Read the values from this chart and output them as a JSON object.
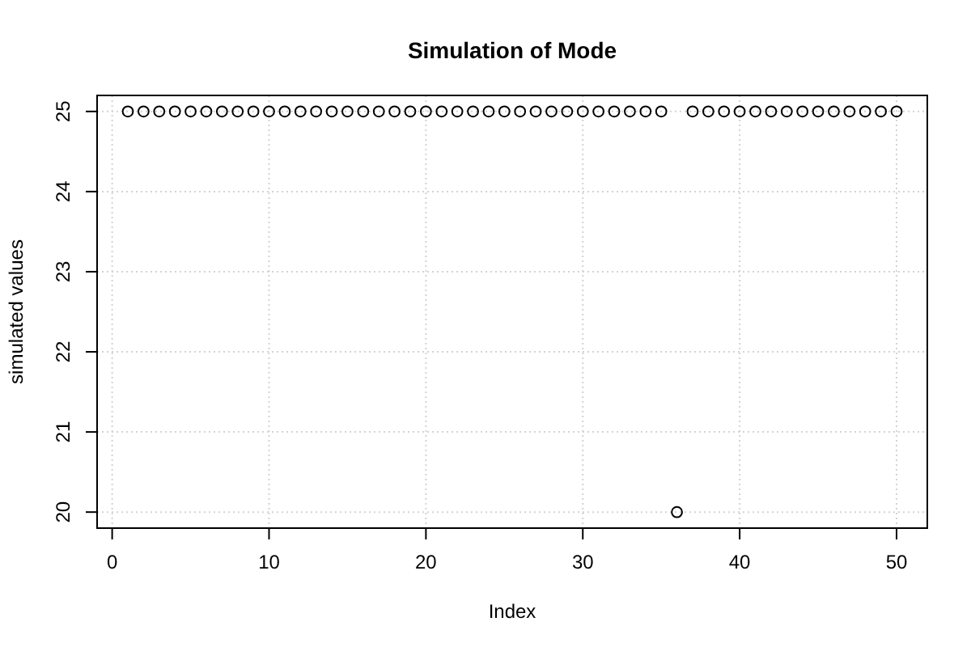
{
  "chart_data": {
    "type": "scatter",
    "title": "Simulation of Mode",
    "xlabel": "Index",
    "ylabel": "simulated values",
    "x": [
      1,
      2,
      3,
      4,
      5,
      6,
      7,
      8,
      9,
      10,
      11,
      12,
      13,
      14,
      15,
      16,
      17,
      18,
      19,
      20,
      21,
      22,
      23,
      24,
      25,
      26,
      27,
      28,
      29,
      30,
      31,
      32,
      33,
      34,
      35,
      36,
      37,
      38,
      39,
      40,
      41,
      42,
      43,
      44,
      45,
      46,
      47,
      48,
      49,
      50
    ],
    "values": [
      25,
      25,
      25,
      25,
      25,
      25,
      25,
      25,
      25,
      25,
      25,
      25,
      25,
      25,
      25,
      25,
      25,
      25,
      25,
      25,
      25,
      25,
      25,
      25,
      25,
      25,
      25,
      25,
      25,
      25,
      25,
      25,
      25,
      25,
      25,
      20,
      25,
      25,
      25,
      25,
      25,
      25,
      25,
      25,
      25,
      25,
      25,
      25,
      25,
      25
    ],
    "color": "#000000",
    "marker": "circle",
    "xlim": [
      -0.96,
      51.96
    ],
    "ylim": [
      19.8,
      25.2
    ],
    "xticks": [
      0,
      10,
      20,
      30,
      40,
      50
    ],
    "yticks": [
      20,
      21,
      22,
      23,
      24,
      25
    ],
    "grid": true
  }
}
